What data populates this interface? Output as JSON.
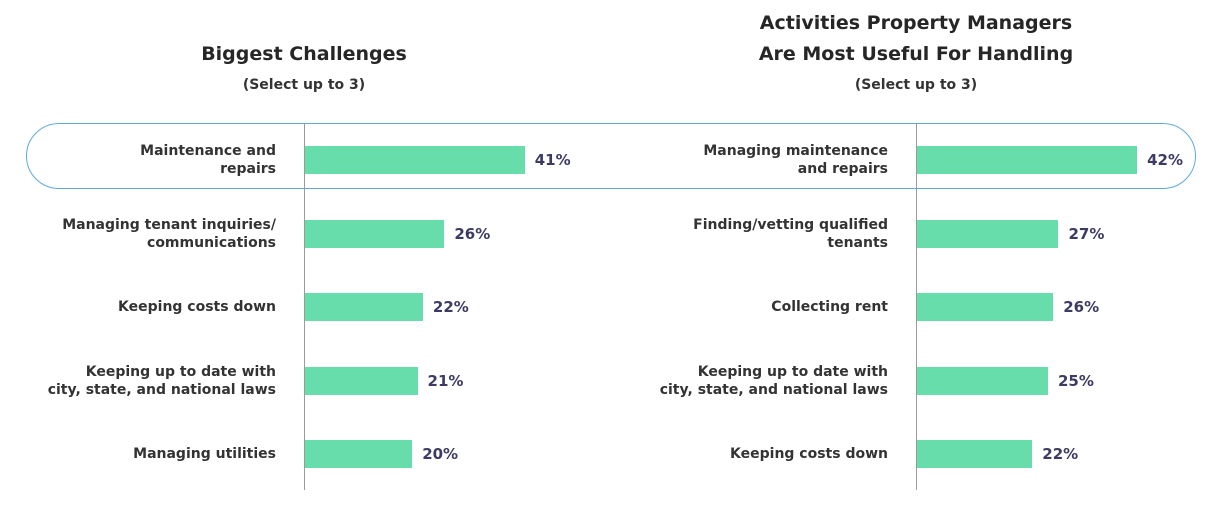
{
  "colors": {
    "bar": "#66ddaa",
    "value_text": "#3d3b63",
    "highlight_outline": "#5da9dd",
    "axis": "#9a9a9a"
  },
  "chart_data": [
    {
      "type": "bar",
      "orientation": "horizontal",
      "title": "Biggest Challenges",
      "subtitle": "(Select up to 3)",
      "categories": [
        [
          "Maintenance and",
          "repairs"
        ],
        [
          "Managing tenant inquiries/",
          "communications"
        ],
        [
          "Keeping costs down"
        ],
        [
          "Keeping up to date with",
          "city, state, and national laws"
        ],
        [
          "Managing utilities"
        ]
      ],
      "values": [
        41,
        26,
        22,
        21,
        20
      ],
      "value_labels": [
        "41%",
        "26%",
        "22%",
        "21%",
        "20%"
      ],
      "unit": "%",
      "highlighted_index": 0
    },
    {
      "type": "bar",
      "orientation": "horizontal",
      "title": "Activities Property Managers\nAre Most Useful For Handling",
      "subtitle": "(Select up to 3)",
      "categories": [
        [
          "Managing maintenance",
          "and repairs"
        ],
        [
          "Finding/vetting qualified",
          "tenants"
        ],
        [
          "Collecting rent"
        ],
        [
          "Keeping up to date with",
          "city, state, and national laws"
        ],
        [
          "Keeping costs down"
        ]
      ],
      "values": [
        42,
        27,
        26,
        25,
        22
      ],
      "value_labels": [
        "42%",
        "27%",
        "26%",
        "25%",
        "22%"
      ],
      "unit": "%",
      "highlighted_index": 0
    }
  ]
}
